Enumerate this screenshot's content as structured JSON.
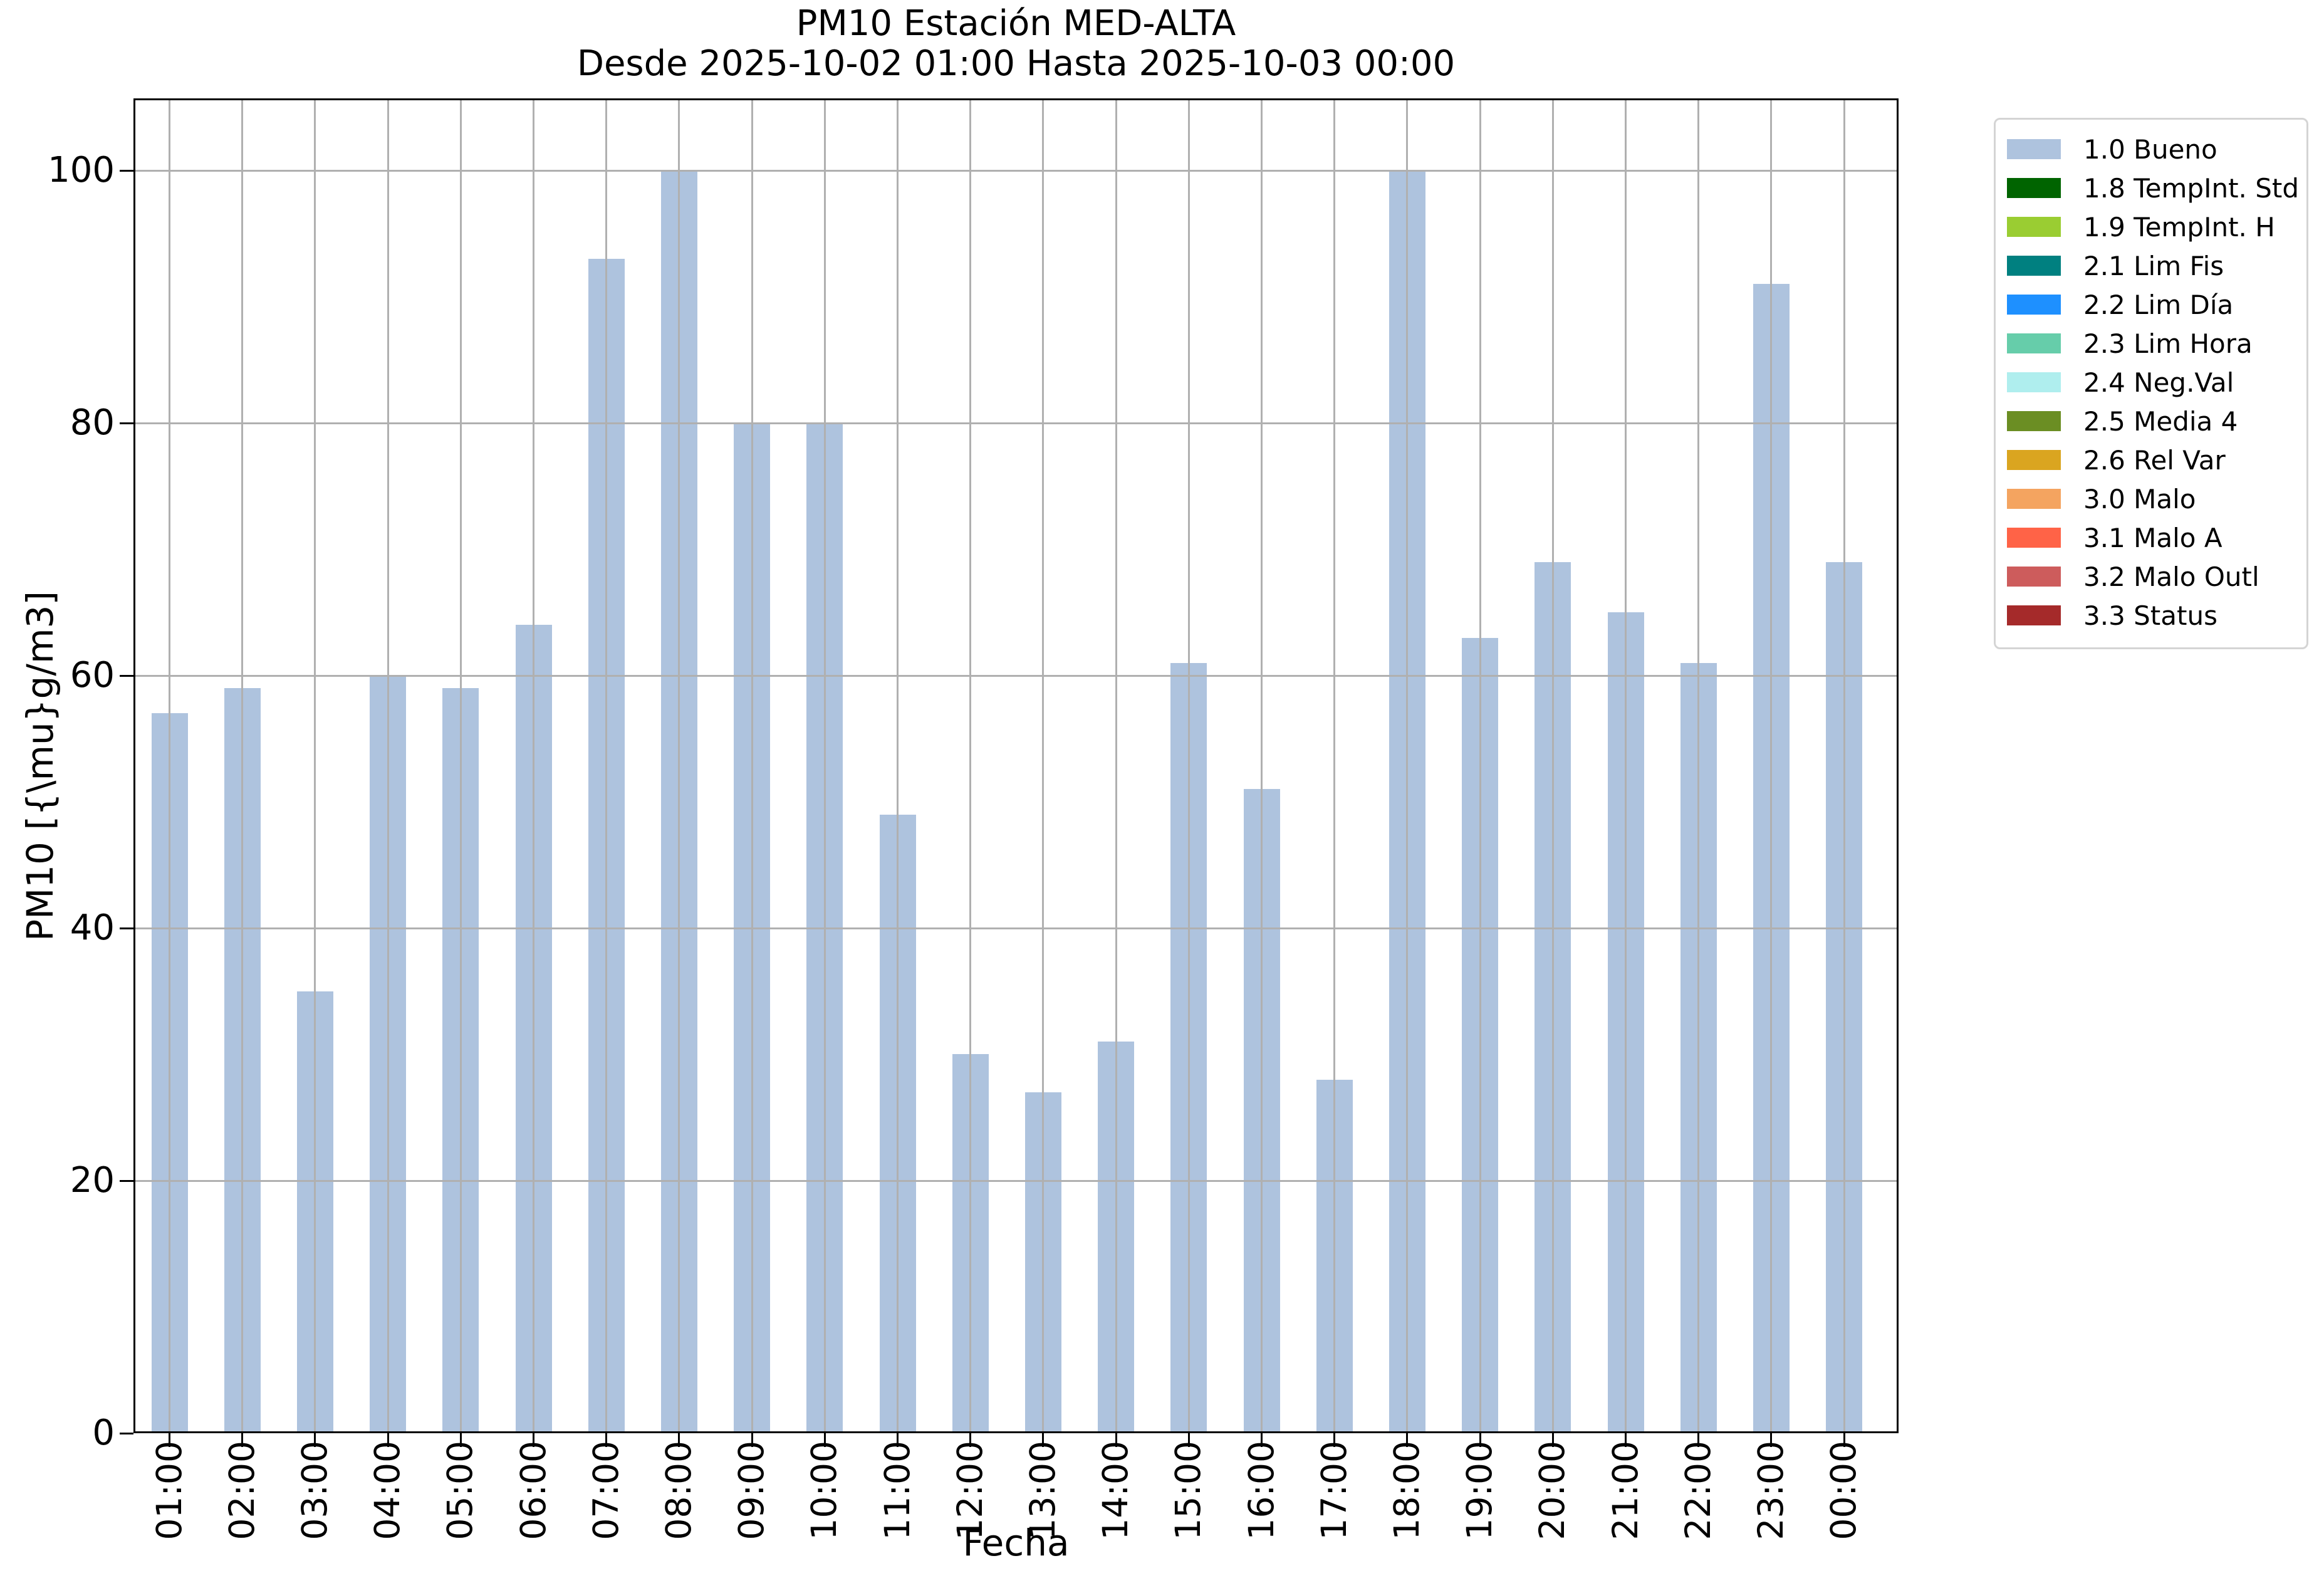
{
  "figure_title": {
    "line1": "PM10 Estación MED-ALTA",
    "line2": "Desde 2025-10-02 01:00 Hasta 2025-10-03 00:00"
  },
  "axes": {
    "xlabel": "Fecha",
    "ylabel": "PM10 [{\\mu}g/m3]"
  },
  "chart_data": {
    "type": "bar",
    "title": "PM10 Estación MED-ALTA",
    "subtitle": "Desde 2025-10-02 01:00 Hasta 2025-10-03 00:00",
    "xlabel": "Fecha",
    "ylabel": "PM10 [{\\mu}g/m3]",
    "categories": [
      "01:00",
      "02:00",
      "03:00",
      "04:00",
      "05:00",
      "06:00",
      "07:00",
      "08:00",
      "09:00",
      "10:00",
      "11:00",
      "12:00",
      "13:00",
      "14:00",
      "15:00",
      "16:00",
      "17:00",
      "18:00",
      "19:00",
      "20:00",
      "21:00",
      "22:00",
      "23:00",
      "00:00"
    ],
    "series": [
      {
        "name": "1.0 Bueno",
        "color": "#aec3de",
        "values": [
          57,
          59,
          35,
          60,
          59,
          64,
          93,
          100,
          80,
          80,
          49,
          30,
          27,
          31,
          61,
          51,
          28,
          100,
          63,
          69,
          65,
          61,
          91,
          69
        ]
      }
    ],
    "ylim": [
      0,
      105.7
    ],
    "yticks": [
      0,
      20,
      40,
      60,
      80,
      100
    ],
    "grid": true,
    "grid_color": "#b0b0b0",
    "bar_color": "#aec3de",
    "legend_position": "outside-upper-right",
    "x_tick_rotation": 90
  },
  "legend": {
    "items": [
      {
        "label": "1.0 Bueno",
        "color": "#aec3de"
      },
      {
        "label": "1.8 TempInt. Std",
        "color": "#006400"
      },
      {
        "label": "1.9 TempInt. H",
        "color": "#9acd32"
      },
      {
        "label": "2.1 Lim Fis",
        "color": "#008080"
      },
      {
        "label": "2.2 Lim Día",
        "color": "#1e90ff"
      },
      {
        "label": "2.3 Lim Hora",
        "color": "#66cdaa"
      },
      {
        "label": "2.4 Neg.Val",
        "color": "#afeeee"
      },
      {
        "label": "2.5 Media 4",
        "color": "#6b8e23"
      },
      {
        "label": "2.6 Rel Var",
        "color": "#daa520"
      },
      {
        "label": "3.0 Malo",
        "color": "#f4a460"
      },
      {
        "label": "3.1 Malo A",
        "color": "#ff6347"
      },
      {
        "label": "3.2 Malo Outl",
        "color": "#cd5c5c"
      },
      {
        "label": "3.3 Status",
        "color": "#a52a2a"
      }
    ]
  }
}
